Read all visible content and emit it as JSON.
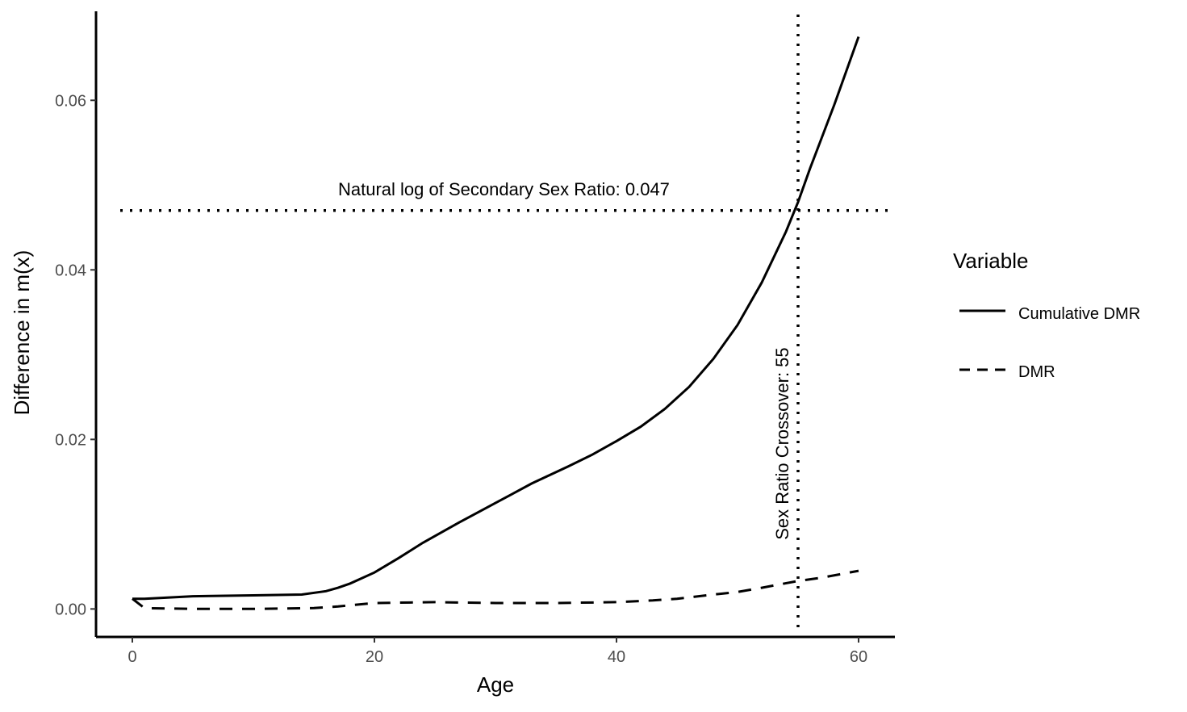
{
  "chart_data": {
    "type": "line",
    "xlabel": "Age",
    "ylabel": "Difference in m(x)",
    "xlim": [
      -3,
      63
    ],
    "ylim": [
      -0.0033,
      0.0705
    ],
    "xticks": [
      0,
      20,
      40,
      60
    ],
    "xtick_labels": [
      "0",
      "20",
      "40",
      "60"
    ],
    "yticks": [
      0.0,
      0.02,
      0.04,
      0.06
    ],
    "ytick_labels": [
      "0.00",
      "0.02",
      "0.04",
      "0.06"
    ],
    "grid": false,
    "legend": {
      "title": "Variable",
      "position": "right",
      "entries": [
        {
          "label": "Cumulative DMR",
          "linetype": "solid"
        },
        {
          "label": "DMR",
          "linetype": "dashed"
        }
      ]
    },
    "annotations": {
      "hline": {
        "y": 0.047,
        "label": "Natural log of Secondary Sex Ratio: 0.047",
        "linetype": "dotted",
        "label_x": 17
      },
      "vline": {
        "x": 55,
        "label": "Sex Ratio Crossover: 55",
        "linetype": "dotted",
        "label_y": 0.0195
      }
    },
    "series": [
      {
        "name": "Cumulative DMR",
        "linetype": "solid",
        "x": [
          0,
          1,
          5,
          10,
          14,
          16,
          17,
          18,
          20,
          22,
          24,
          27,
          30,
          33,
          36,
          38,
          40,
          42,
          44,
          46,
          48,
          50,
          52,
          54,
          55,
          56,
          58,
          60
        ],
        "y": [
          0.0012,
          0.0012,
          0.0015,
          0.0016,
          0.0017,
          0.0021,
          0.0025,
          0.003,
          0.0043,
          0.006,
          0.0078,
          0.0102,
          0.0125,
          0.0148,
          0.0168,
          0.0182,
          0.0198,
          0.0215,
          0.0236,
          0.0262,
          0.0295,
          0.0335,
          0.0385,
          0.0445,
          0.048,
          0.052,
          0.0595,
          0.0675
        ]
      },
      {
        "name": "DMR",
        "linetype": "dashed",
        "x": [
          0,
          1,
          5,
          10,
          15,
          17,
          20,
          25,
          30,
          35,
          40,
          43,
          45,
          48,
          50,
          52,
          55,
          57,
          60
        ],
        "y": [
          0.0012,
          0.0001,
          0.0,
          0.0,
          0.0001,
          0.0003,
          0.0007,
          0.0008,
          0.0007,
          0.0007,
          0.0008,
          0.001,
          0.0012,
          0.0017,
          0.002,
          0.0025,
          0.0033,
          0.0037,
          0.0045
        ]
      }
    ]
  }
}
